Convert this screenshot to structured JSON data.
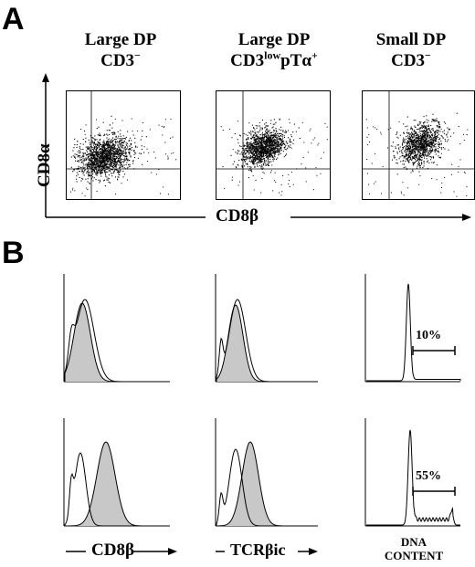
{
  "panel_a": {
    "letter": "A",
    "columns": [
      {
        "line1": "Large DP",
        "line2_main": "CD3",
        "line2_sup": "−",
        "line2_mid": "",
        "line2_sup2": ""
      },
      {
        "line1": "Large DP",
        "line2_main": "CD3",
        "line2_sup": "low",
        "line2_mid": "pTα",
        "line2_sup2": "+"
      },
      {
        "line1": "Small DP",
        "line2_main": "CD3",
        "line2_sup": "−",
        "line2_mid": "",
        "line2_sup2": ""
      }
    ],
    "y_axis_label": "CD8α",
    "x_axis_label": "CD8β"
  },
  "panel_b": {
    "letter": "B",
    "x_labels": [
      "CD8β",
      "TCRβic"
    ],
    "dna_label_line1": "DNA",
    "dna_label_line2": "CONTENT",
    "percent_top": "10%",
    "percent_bottom": "55%"
  },
  "colors": {
    "fill": "#c8c8c8",
    "ink": "#000000"
  }
}
